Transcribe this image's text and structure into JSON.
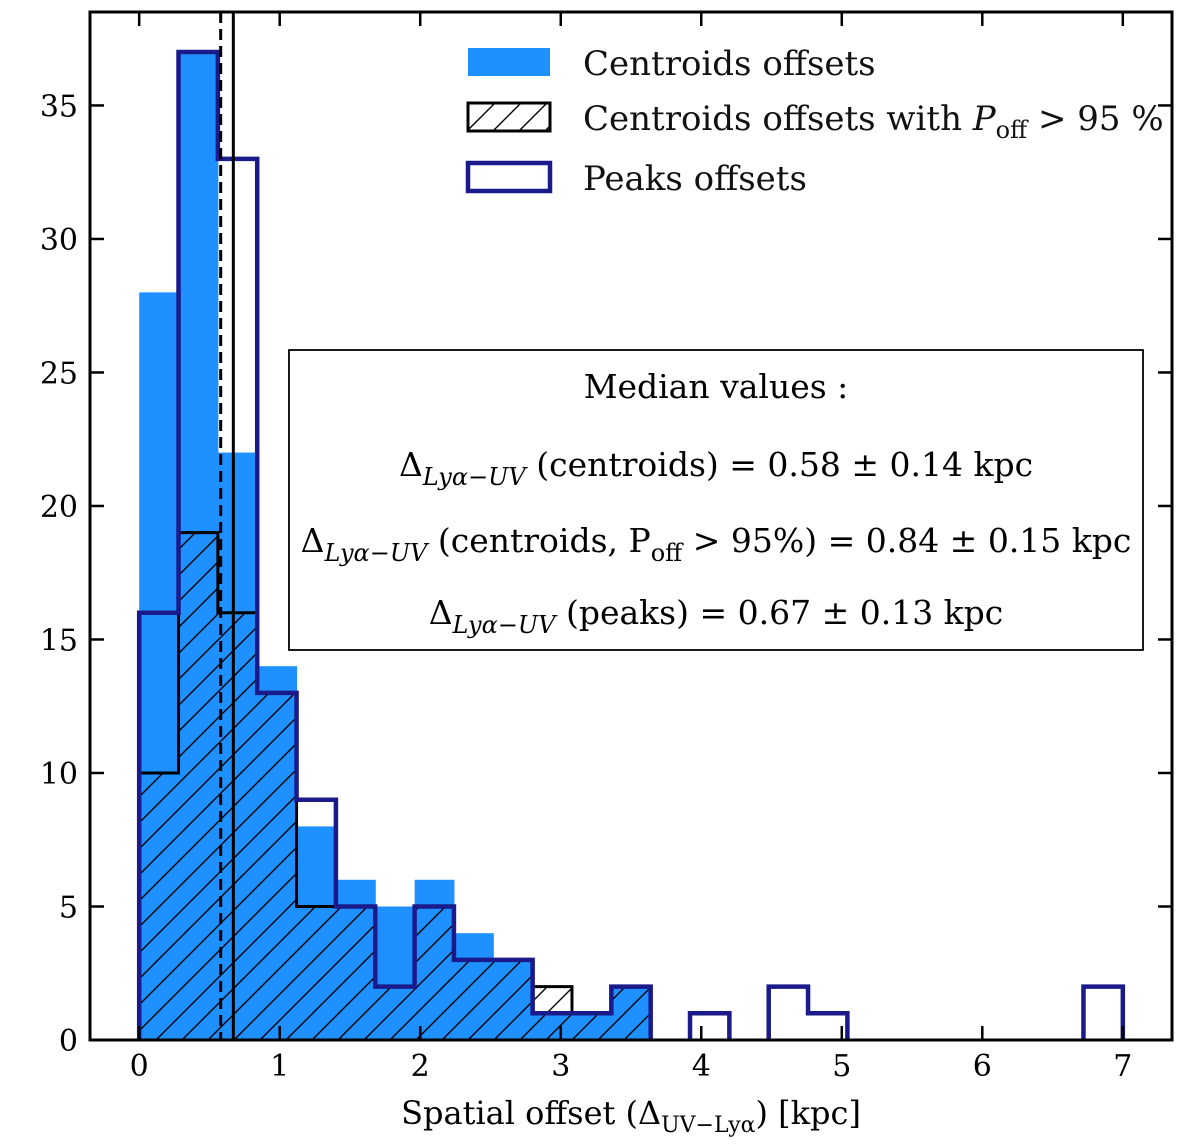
{
  "chart_data": {
    "type": "bar",
    "bin_edges": [
      0,
      0.28,
      0.56,
      0.84,
      1.12,
      1.4,
      1.68,
      1.96,
      2.24,
      2.52,
      2.8,
      3.08,
      3.36,
      3.64,
      3.92,
      4.2,
      4.48,
      4.76,
      5.04,
      5.32,
      5.6,
      5.88,
      6.16,
      6.44,
      6.72,
      7.0
    ],
    "series": [
      {
        "name": "Centroids offsets",
        "style": "filled",
        "color": "#1e90ff",
        "values": [
          28,
          37,
          22,
          14,
          8,
          6,
          5,
          6,
          4,
          3,
          1,
          1,
          2,
          0,
          0,
          0,
          0,
          0,
          0,
          0,
          0,
          0,
          0,
          0,
          0
        ]
      },
      {
        "name": "Centroids offsets with P_off > 95 %",
        "style": "hatched-step",
        "color": "#000000",
        "values": [
          10,
          19,
          16,
          13,
          5,
          5,
          2,
          5,
          3,
          3,
          2,
          1,
          2,
          0,
          0,
          0,
          0,
          0,
          0,
          0,
          0,
          0,
          0,
          0,
          0
        ]
      },
      {
        "name": "Peaks offsets",
        "style": "step",
        "color": "#1a1a8a",
        "values": [
          16,
          37,
          33,
          13,
          9,
          5,
          2,
          5,
          3,
          3,
          1,
          1,
          2,
          0,
          1,
          0,
          2,
          1,
          0,
          0,
          0,
          0,
          0,
          0,
          2
        ]
      }
    ],
    "vlines": [
      {
        "name": "median-centroids",
        "x": 0.58,
        "style": "dashed"
      },
      {
        "name": "median-peaks",
        "x": 0.67,
        "style": "solid"
      }
    ],
    "xlabel": "Spatial offset (Δ",
    "xlabel_sub": "UV−Lyα",
    "xlabel_tail": ") [kpc]",
    "ylabel": "",
    "xlim": [
      -0.35,
      7.35
    ],
    "ylim": [
      0,
      38.5
    ],
    "xticks": [
      0,
      1,
      2,
      3,
      4,
      5,
      6,
      7
    ],
    "yticks": [
      0,
      5,
      10,
      15,
      20,
      25,
      30,
      35
    ],
    "legend_position": "top-right",
    "legend": [
      {
        "label": "Centroids offsets"
      },
      {
        "label": "Centroids offsets with ",
        "math": "P",
        "sub": "off",
        "tail": " > 95 %"
      },
      {
        "label": "Peaks offsets"
      }
    ],
    "annotation_box": {
      "title": "Median values  :",
      "lines": [
        {
          "pre": "Δ",
          "sub": "Lyα−UV",
          "text": " (centroids) = 0.58 ± 0.14 kpc"
        },
        {
          "pre": "Δ",
          "sub": "Lyα−UV",
          "text": " (centroids, P",
          "sub2": "off",
          "text2": " > 95%) = 0.84 ± 0.15 kpc"
        },
        {
          "pre": "Δ",
          "sub": "Lyα−UV",
          "text": " (peaks) = 0.67 ± 0.13 kpc"
        }
      ]
    }
  }
}
